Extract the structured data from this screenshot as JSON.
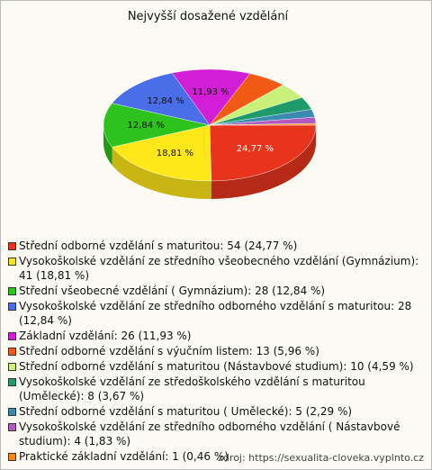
{
  "chart_data": {
    "type": "pie3d",
    "title": "Nejvyšší dosažené vzdělání",
    "categories": [
      "Střední odborné vzdělání s maturitou: 54 (24,77 %)",
      "Vysokoškolské vzdělání ze středního všeobecného vzdělání (Gymnázium): 41 (18,81 %)",
      "Střední všeobecné vzdělání ( Gymnázium): 28 (12,84 %)",
      "Vysokoškolské vzdělání ze středního odborného vzdělání s maturitou: 28 (12,84 %)",
      "Základní vzdělání: 26 (11,93 %)",
      "Střední odborné vzdělání s výučním listem: 13 (5,96 %)",
      "Střední odborné vzdělání s maturitou (Nástavbové studium): 10 (4,59 %)",
      "Vysokoškolské vzdělání ze středoškolského vzdělání s maturitou (Umělecké): 8 (3,67 %)",
      "Střední odborné vzdělání s maturitou ( Umělecké): 5 (2,29 %)",
      "Vysokoškolské vzdělání ze středního odborného vzdělání ( Nástavbové studium): 4 (1,83 %)",
      "Praktické základní vzdělání: 1 (0,46 %)"
    ],
    "values": [
      24.77,
      18.81,
      12.84,
      12.84,
      11.93,
      5.96,
      4.59,
      3.67,
      2.29,
      1.83,
      0.46
    ],
    "value_labels": [
      "24,77 %",
      "18,81 %",
      "12,84 %",
      "12,84 %",
      "11,93 %",
      null,
      null,
      null,
      null,
      null,
      null
    ],
    "colors": [
      "#e8341c",
      "#ffe81a",
      "#2ec21f",
      "#4a6ee8",
      "#d21ed6",
      "#f05a14",
      "#c8f07a",
      "#1f9a6a",
      "#3a8ab0",
      "#b35ac0",
      "#f58a1a"
    ],
    "source": "zdroj: https://sexualita-cloveka.vyplnto.cz"
  }
}
